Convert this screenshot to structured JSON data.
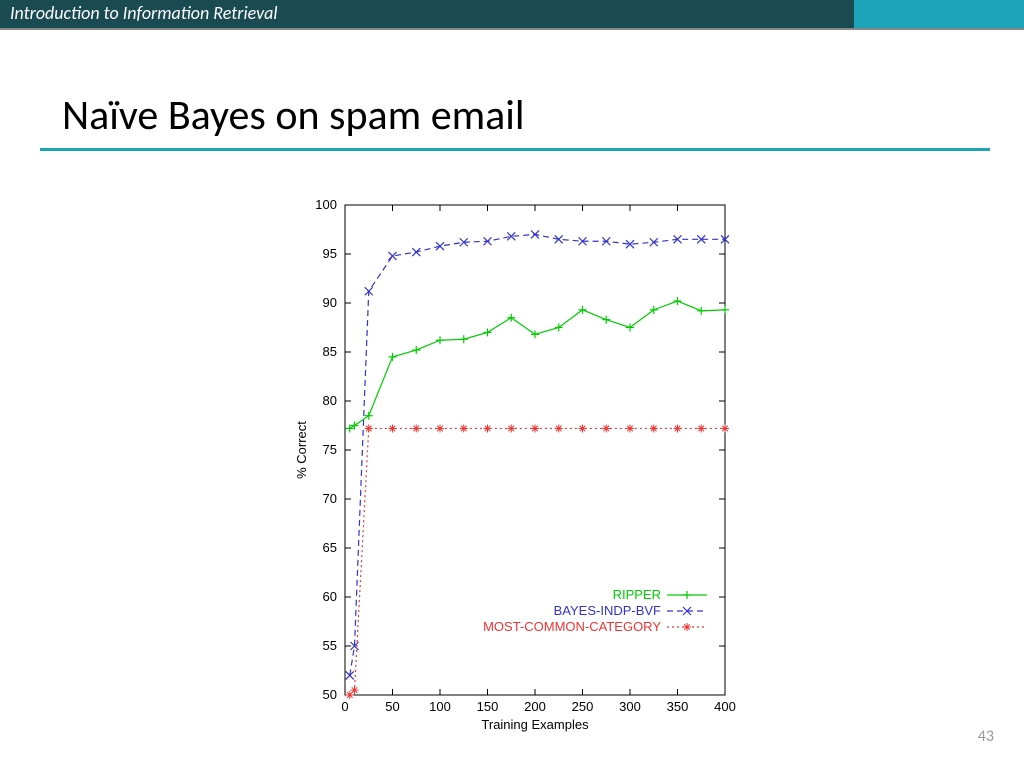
{
  "header": {
    "course_title": "Introduction to Information Retrieval",
    "bg_color": "#1a4a52",
    "accent_color": "#1ca5b8"
  },
  "slide": {
    "title": "Naïve Bayes on spam email",
    "page_number": "43",
    "underline_color": "#1ca5b8"
  },
  "chart": {
    "type": "line",
    "xlabel": "Training Examples",
    "ylabel": "% Correct",
    "label_fontsize": 13,
    "xlim": [
      0,
      400
    ],
    "ylim": [
      50,
      100
    ],
    "xticks": [
      0,
      50,
      100,
      150,
      200,
      250,
      300,
      350,
      400
    ],
    "yticks": [
      50,
      55,
      60,
      65,
      70,
      75,
      80,
      85,
      90,
      95,
      100
    ],
    "background_color": "#ffffff",
    "border_color": "#000000",
    "series": [
      {
        "name": "RIPPER",
        "color": "#00cc00",
        "marker": "plus",
        "dash": "solid",
        "x": [
          5,
          10,
          25,
          50,
          75,
          100,
          125,
          150,
          175,
          200,
          225,
          250,
          275,
          300,
          325,
          350,
          375,
          400
        ],
        "y": [
          77.2,
          77.5,
          78.5,
          84.5,
          85.2,
          86.2,
          86.3,
          87.0,
          88.5,
          86.8,
          87.5,
          89.3,
          88.3,
          87.5,
          89.3,
          90.2,
          89.2,
          89.3
        ]
      },
      {
        "name": "BAYES-INDP-BVF",
        "color": "#3333cc",
        "marker": "x",
        "dash": "dashed",
        "x": [
          5,
          10,
          25,
          50,
          75,
          100,
          125,
          150,
          175,
          200,
          225,
          250,
          275,
          300,
          325,
          350,
          375,
          400
        ],
        "y": [
          52.0,
          55.0,
          91.2,
          94.8,
          95.2,
          95.8,
          96.2,
          96.3,
          96.8,
          97.0,
          96.5,
          96.3,
          96.3,
          96.0,
          96.2,
          96.5,
          96.5,
          96.5
        ]
      },
      {
        "name": "MOST-COMMON-CATEGORY",
        "color": "#ee3333",
        "marker": "star",
        "dash": "dotted",
        "x": [
          5,
          10,
          25,
          50,
          75,
          100,
          125,
          150,
          175,
          200,
          225,
          250,
          275,
          300,
          325,
          350,
          375,
          400
        ],
        "y": [
          50.0,
          50.5,
          77.2,
          77.2,
          77.2,
          77.2,
          77.2,
          77.2,
          77.2,
          77.2,
          77.2,
          77.2,
          77.2,
          77.2,
          77.2,
          77.2,
          77.2,
          77.2
        ]
      }
    ],
    "legend": {
      "position": "bottom-right",
      "items": [
        "RIPPER",
        "BAYES-INDP-BVF",
        "MOST-COMMON-CATEGORY"
      ]
    }
  }
}
